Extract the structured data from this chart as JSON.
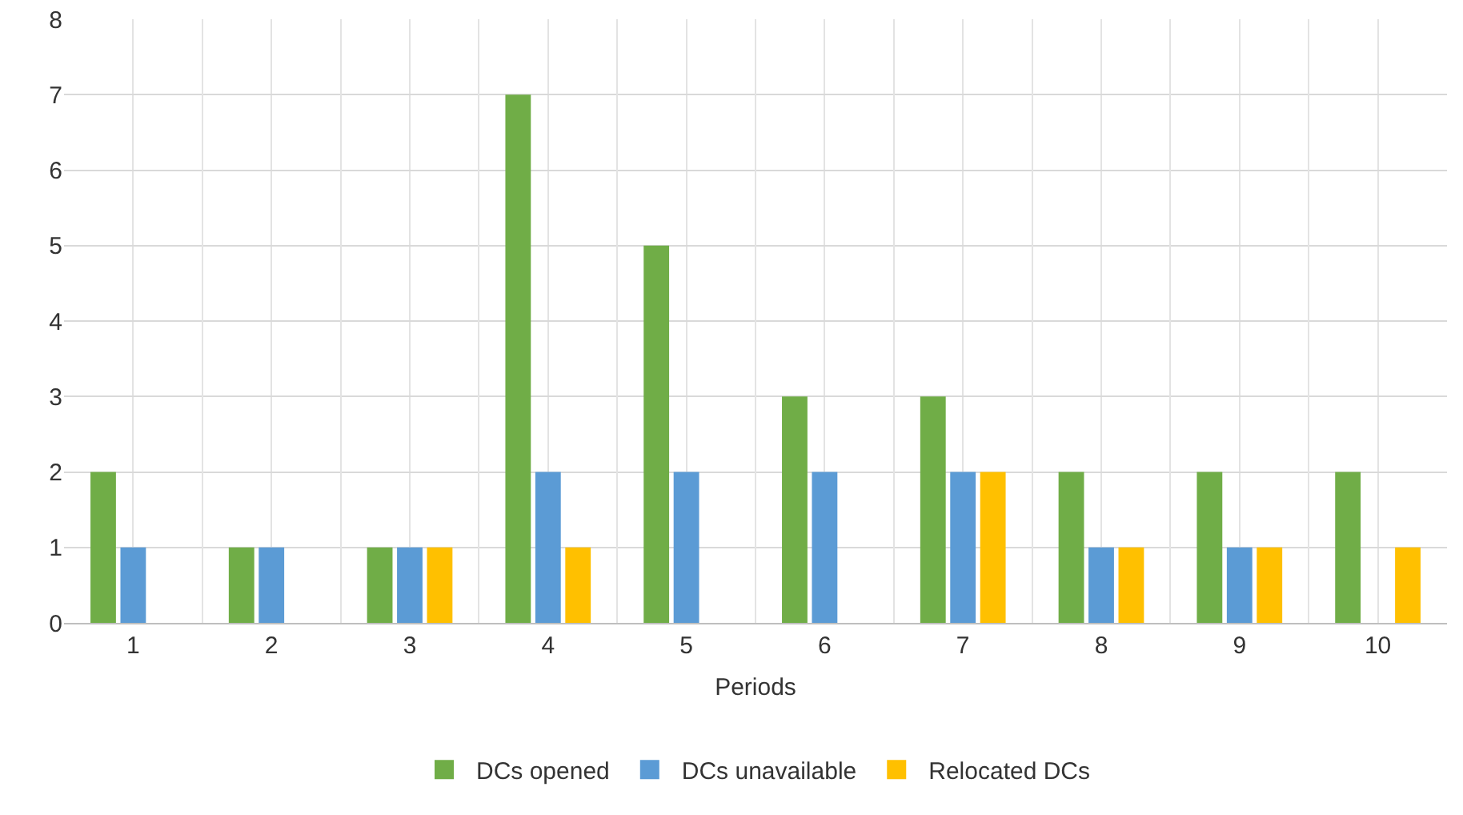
{
  "chart_data": {
    "type": "bar",
    "xlabel": "Periods",
    "categories": [
      "1",
      "2",
      "3",
      "4",
      "5",
      "6",
      "7",
      "8",
      "9",
      "10"
    ],
    "series": [
      {
        "name": "DCs opened",
        "color": "#70ad47",
        "values": [
          2,
          1,
          1,
          7,
          5,
          3,
          3,
          2,
          2,
          2
        ]
      },
      {
        "name": "DCs unavailable",
        "color": "#5b9bd5",
        "values": [
          1,
          1,
          1,
          2,
          2,
          2,
          2,
          1,
          1,
          0
        ]
      },
      {
        "name": "Relocated DCs",
        "color": "#ffc000",
        "values": [
          0,
          0,
          1,
          1,
          0,
          0,
          2,
          1,
          1,
          1
        ]
      }
    ],
    "ylim": [
      0,
      8
    ],
    "yticks": [
      0,
      1,
      2,
      3,
      4,
      5,
      6,
      7,
      8
    ],
    "grid": true,
    "legend": "bottom"
  }
}
